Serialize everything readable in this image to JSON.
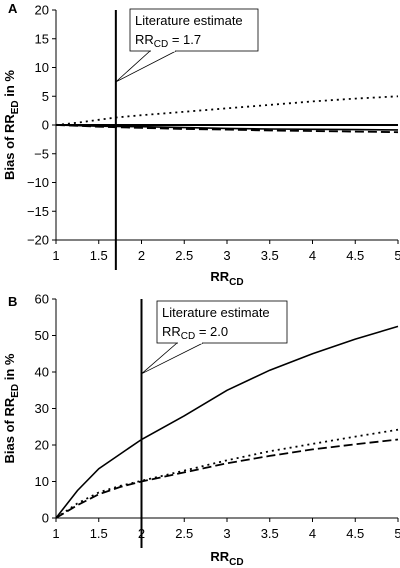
{
  "chart_data": [
    {
      "panel": "A",
      "type": "line",
      "xlabel_main": "RR",
      "xlabel_sub": "CD",
      "ylabel_main": "Bias of RR",
      "ylabel_sub": "ED",
      "ylabel_suffix": " in %",
      "xlim": [
        1,
        5
      ],
      "ylim": [
        -20,
        20
      ],
      "x_ticks": [
        "1",
        "1.5",
        "2",
        "2.5",
        "3",
        "3.5",
        "4",
        "4.5",
        "5"
      ],
      "y_ticks": [
        "20",
        "15",
        "10",
        "5",
        "0",
        "−5",
        "−10",
        "−15",
        "−20"
      ],
      "reference_line_x": 1.7,
      "annotation": {
        "title": "Literature estimate",
        "label_main": "RR",
        "label_sub": "CD",
        "label_value": " = 1.7",
        "point_x": 1.7,
        "point_y": 7.5
      },
      "series": [
        {
          "style": "dotted",
          "x": [
            1,
            1.25,
            1.5,
            1.7,
            2,
            2.5,
            3,
            3.5,
            4,
            4.5,
            5
          ],
          "y": [
            0,
            0.4,
            0.9,
            1.3,
            1.7,
            2.3,
            2.9,
            3.5,
            4.1,
            4.6,
            5.0
          ]
        },
        {
          "style": "solid",
          "x": [
            1,
            1.5,
            2,
            2.5,
            3,
            3.5,
            4,
            4.5,
            5
          ],
          "y": [
            0,
            -0.2,
            -0.3,
            -0.45,
            -0.6,
            -0.7,
            -0.75,
            -0.8,
            -0.85
          ]
        },
        {
          "style": "dashed",
          "x": [
            1,
            1.5,
            2,
            2.5,
            3,
            3.5,
            4,
            4.5,
            5
          ],
          "y": [
            0,
            -0.3,
            -0.5,
            -0.7,
            -0.8,
            -0.95,
            -1.05,
            -1.15,
            -1.25
          ]
        }
      ]
    },
    {
      "panel": "B",
      "type": "line",
      "xlabel_main": "RR",
      "xlabel_sub": "CD",
      "ylabel_main": "Bias of RR",
      "ylabel_sub": "ED",
      "ylabel_suffix": " in %",
      "xlim": [
        1,
        5
      ],
      "ylim": [
        0,
        60
      ],
      "x_ticks": [
        "1",
        "1.5",
        "2",
        "2.5",
        "3",
        "3.5",
        "4",
        "4.5",
        "5"
      ],
      "y_ticks": [
        "60",
        "50",
        "40",
        "30",
        "20",
        "10",
        "0"
      ],
      "reference_line_x": 2.0,
      "annotation": {
        "title": "Literature estimate",
        "label_main": "RR",
        "label_sub": "CD",
        "label_value": " = 2.0",
        "point_x": 2.0,
        "point_y": 39.5
      },
      "series": [
        {
          "style": "solid",
          "x": [
            1,
            1.25,
            1.5,
            1.75,
            2,
            2.5,
            3,
            3.5,
            4,
            4.5,
            5
          ],
          "y": [
            0,
            7.5,
            13.5,
            17.5,
            21.5,
            28,
            35,
            40.5,
            45,
            49,
            52.5
          ]
        },
        {
          "style": "dotted",
          "x": [
            1,
            1.25,
            1.5,
            1.75,
            2,
            2.5,
            3,
            3.5,
            4,
            4.5,
            5
          ],
          "y": [
            0,
            4,
            7,
            8.8,
            10.2,
            13,
            15.8,
            18.3,
            20.3,
            22.3,
            24.2
          ]
        },
        {
          "style": "dashed",
          "x": [
            1,
            1.25,
            1.5,
            1.75,
            2,
            2.5,
            3,
            3.5,
            4,
            4.5,
            5
          ],
          "y": [
            0,
            3.5,
            6.5,
            8.5,
            10,
            12.5,
            15,
            17,
            18.8,
            20.2,
            21.5
          ]
        }
      ]
    }
  ]
}
